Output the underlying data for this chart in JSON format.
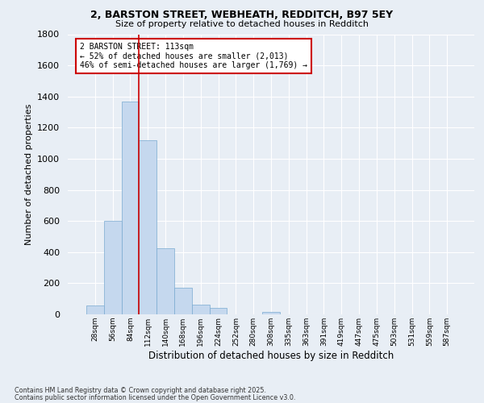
{
  "title_line1": "2, BARSTON STREET, WEBHEATH, REDDITCH, B97 5EY",
  "title_line2": "Size of property relative to detached houses in Redditch",
  "xlabel": "Distribution of detached houses by size in Redditch",
  "ylabel": "Number of detached properties",
  "bar_color": "#c5d8ee",
  "bar_edgecolor": "#7aaad0",
  "categories": [
    "28sqm",
    "56sqm",
    "84sqm",
    "112sqm",
    "140sqm",
    "168sqm",
    "196sqm",
    "224sqm",
    "252sqm",
    "280sqm",
    "308sqm",
    "335sqm",
    "363sqm",
    "391sqm",
    "419sqm",
    "447sqm",
    "475sqm",
    "503sqm",
    "531sqm",
    "559sqm",
    "587sqm"
  ],
  "values": [
    55,
    600,
    1365,
    1120,
    425,
    170,
    60,
    40,
    0,
    0,
    15,
    0,
    0,
    0,
    0,
    0,
    0,
    0,
    0,
    0,
    0
  ],
  "ylim": [
    0,
    1800
  ],
  "yticks": [
    0,
    200,
    400,
    600,
    800,
    1000,
    1200,
    1400,
    1600,
    1800
  ],
  "vline_x": 2.5,
  "vline_color": "#cc0000",
  "annotation_text": "2 BARSTON STREET: 113sqm\n← 52% of detached houses are smaller (2,013)\n46% of semi-detached houses are larger (1,769) →",
  "annotation_box_facecolor": "#ffffff",
  "annotation_box_edgecolor": "#cc0000",
  "footnote_line1": "Contains HM Land Registry data © Crown copyright and database right 2025.",
  "footnote_line2": "Contains public sector information licensed under the Open Government Licence v3.0.",
  "background_color": "#e8eef5",
  "grid_color": "#ffffff"
}
